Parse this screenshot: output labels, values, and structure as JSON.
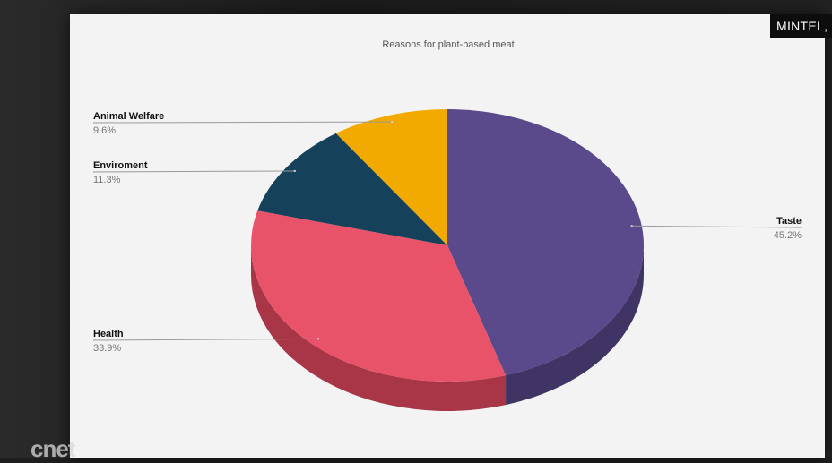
{
  "source_label": "MINTEL,",
  "watermark": "cnet",
  "chart_data": {
    "type": "pie",
    "title": "Reasons for plant-based meat",
    "slices": [
      {
        "label": "Taste",
        "value": 45.2,
        "display": "45.2%",
        "color": "#5b4a8b",
        "side_color": "#3f3463"
      },
      {
        "label": "Health",
        "value": 33.9,
        "display": "33.9%",
        "color": "#e95369",
        "side_color": "#a83646"
      },
      {
        "label": "Enviroment",
        "value": 11.3,
        "display": "11.3%",
        "color": "#15415b",
        "side_color": "#0d2a3b"
      },
      {
        "label": "Animal Welfare",
        "value": 9.6,
        "display": "9.6%",
        "color": "#f2a900",
        "side_color": "#b57f00"
      }
    ],
    "legend": "none",
    "grid": false,
    "style": "3d"
  }
}
